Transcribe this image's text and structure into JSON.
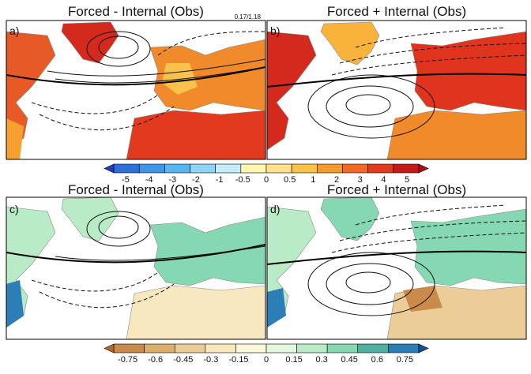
{
  "panels": [
    {
      "id": "a",
      "label": "a)",
      "title": "Forced - Internal (Obs)",
      "corner_note": "0.17/1.18"
    },
    {
      "id": "b",
      "label": "b)",
      "title": "Forced + Internal (Obs)",
      "corner_note": ""
    },
    {
      "id": "c",
      "label": "c)",
      "title": "Forced - Internal (Obs)",
      "corner_note": ""
    },
    {
      "id": "d",
      "label": "d)",
      "title": "Forced + Internal (Obs)",
      "corner_note": ""
    }
  ],
  "colorbar_temperature": {
    "ticks": [
      "-5",
      "-4",
      "-3",
      "-2",
      "-1",
      "-0.5",
      "0",
      "0.5",
      "1",
      "2",
      "3",
      "4",
      "5"
    ],
    "colors": [
      "#1f3fbf",
      "#2f6fd8",
      "#3f95e6",
      "#55b6f0",
      "#8fd3f6",
      "#c5ecfb",
      "#fff6b0",
      "#fde28a",
      "#f9c24a",
      "#f59a2e",
      "#ef6a25",
      "#e23a1f",
      "#c41a1a",
      "#a80f12"
    ]
  },
  "colorbar_precip": {
    "ticks": [
      "-0.75",
      "-0.6",
      "-0.45",
      "-0.3",
      "-0.15",
      "0",
      "0.15",
      "0.3",
      "0.45",
      "0.6",
      "0.75"
    ],
    "colors": [
      "#b26a2e",
      "#c98a4a",
      "#dcae6e",
      "#eccd98",
      "#f7e8bf",
      "#fdf8dc",
      "#e3f6de",
      "#b9ebc6",
      "#85d8b2",
      "#4fb0a0",
      "#2b7fb6",
      "#184f8f"
    ]
  }
}
